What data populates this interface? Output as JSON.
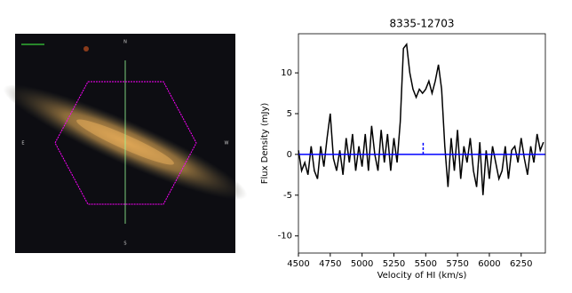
{
  "chart_data": [
    {
      "type": "image",
      "labels": [
        "N",
        "E",
        "W",
        "S"
      ]
    },
    {
      "type": "line",
      "title": "8335-12703",
      "x_label": "Velocity of HI (km/s)",
      "y_label": "Flux Density (mJy)",
      "xlim": [
        4500,
        6440
      ],
      "ylim": [
        -12.1,
        14.8
      ],
      "xticks": [
        4500,
        4750,
        5000,
        5250,
        5500,
        5750,
        6000,
        6250
      ],
      "yticks": [
        -10,
        -5,
        0,
        5,
        10
      ],
      "hline": {
        "y": 0,
        "color": "#0000ff"
      },
      "vline": {
        "x": 5480,
        "ymin": 0,
        "ymax": 1.5,
        "color": "#0000ff"
      },
      "series": [
        {
          "color": "#000000",
          "x": [
            4500,
            4525,
            4550,
            4575,
            4600,
            4625,
            4650,
            4675,
            4700,
            4725,
            4750,
            4775,
            4800,
            4825,
            4850,
            4875,
            4900,
            4925,
            4950,
            4975,
            5000,
            5025,
            5050,
            5075,
            5100,
            5125,
            5150,
            5175,
            5200,
            5225,
            5250,
            5275,
            5300,
            5325,
            5350,
            5375,
            5400,
            5425,
            5450,
            5475,
            5500,
            5525,
            5550,
            5575,
            5600,
            5625,
            5650,
            5675,
            5700,
            5725,
            5750,
            5775,
            5800,
            5825,
            5850,
            5875,
            5900,
            5925,
            5950,
            5975,
            6000,
            6025,
            6050,
            6075,
            6100,
            6125,
            6150,
            6175,
            6200,
            6225,
            6250,
            6275,
            6300,
            6325,
            6350,
            6375,
            6400,
            6425
          ],
          "values": [
            0.5,
            -2,
            -1,
            -2.5,
            1,
            -2,
            -3,
            1,
            -1.5,
            2,
            5,
            -0.5,
            -2,
            0.5,
            -2.5,
            2,
            -1,
            2.5,
            -2,
            1,
            -1.5,
            2.5,
            -2,
            3.5,
            0,
            -2,
            3,
            -1,
            2.5,
            -2,
            2,
            -1,
            4,
            13,
            13.5,
            10,
            8,
            7,
            8,
            7.5,
            8,
            9,
            7.5,
            9,
            11,
            8,
            1,
            -4,
            2,
            -2,
            3,
            -3,
            1,
            -1,
            2,
            -2,
            -4,
            1.5,
            -5,
            0.5,
            -3,
            1,
            -1,
            -3,
            -2,
            1,
            -3,
            0.5,
            1,
            -1,
            2,
            -0.5,
            -2.5,
            1,
            -1,
            2.5,
            0.5,
            1.5
          ]
        }
      ]
    }
  ]
}
